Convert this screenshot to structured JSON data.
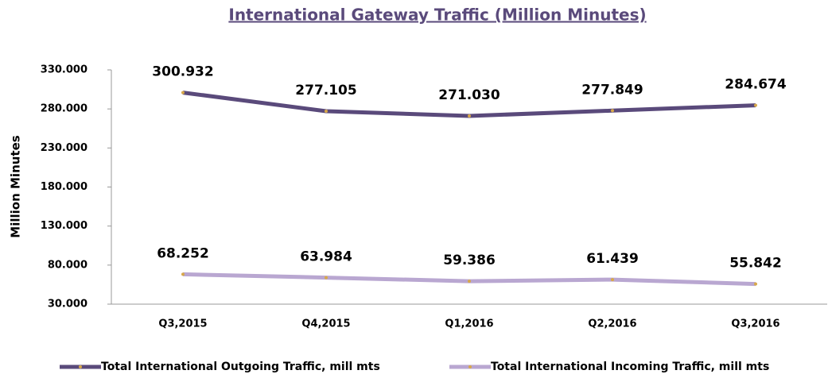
{
  "chart_data": {
    "type": "line",
    "title": "International Gateway Traffic (Million Minutes)",
    "y_label": "Million Minutes",
    "categories": [
      "Q3,2015",
      "Q4,2015",
      "Q1,2016",
      "Q2,2016",
      "Q3,2016"
    ],
    "series": [
      {
        "name": "Total International Outgoing Traffic, mill mts",
        "color": "#5a4a7b",
        "values": [
          300.932,
          277.105,
          271.03,
          277.849,
          284.674
        ],
        "value_labels": [
          "300.932",
          "277.105",
          "271.030",
          "277.849",
          "284.674"
        ]
      },
      {
        "name": "Total International Incoming Traffic, mill mts",
        "color": "#b9a7d1",
        "values": [
          68.252,
          63.984,
          59.386,
          61.439,
          55.842
        ],
        "value_labels": [
          "68.252",
          "63.984",
          "59.386",
          "61.439",
          "55.842"
        ]
      }
    ],
    "ylim": [
      30,
      330
    ],
    "yticks": [
      {
        "value": 30,
        "label": "30.000"
      },
      {
        "value": 80,
        "label": "80.000"
      },
      {
        "value": 130,
        "label": "130.000"
      },
      {
        "value": 180,
        "label": "180.000"
      },
      {
        "value": 230,
        "label": "230.000"
      },
      {
        "value": 280,
        "label": "280.000"
      },
      {
        "value": 330,
        "label": "330.000"
      }
    ],
    "legend": "bottom"
  }
}
